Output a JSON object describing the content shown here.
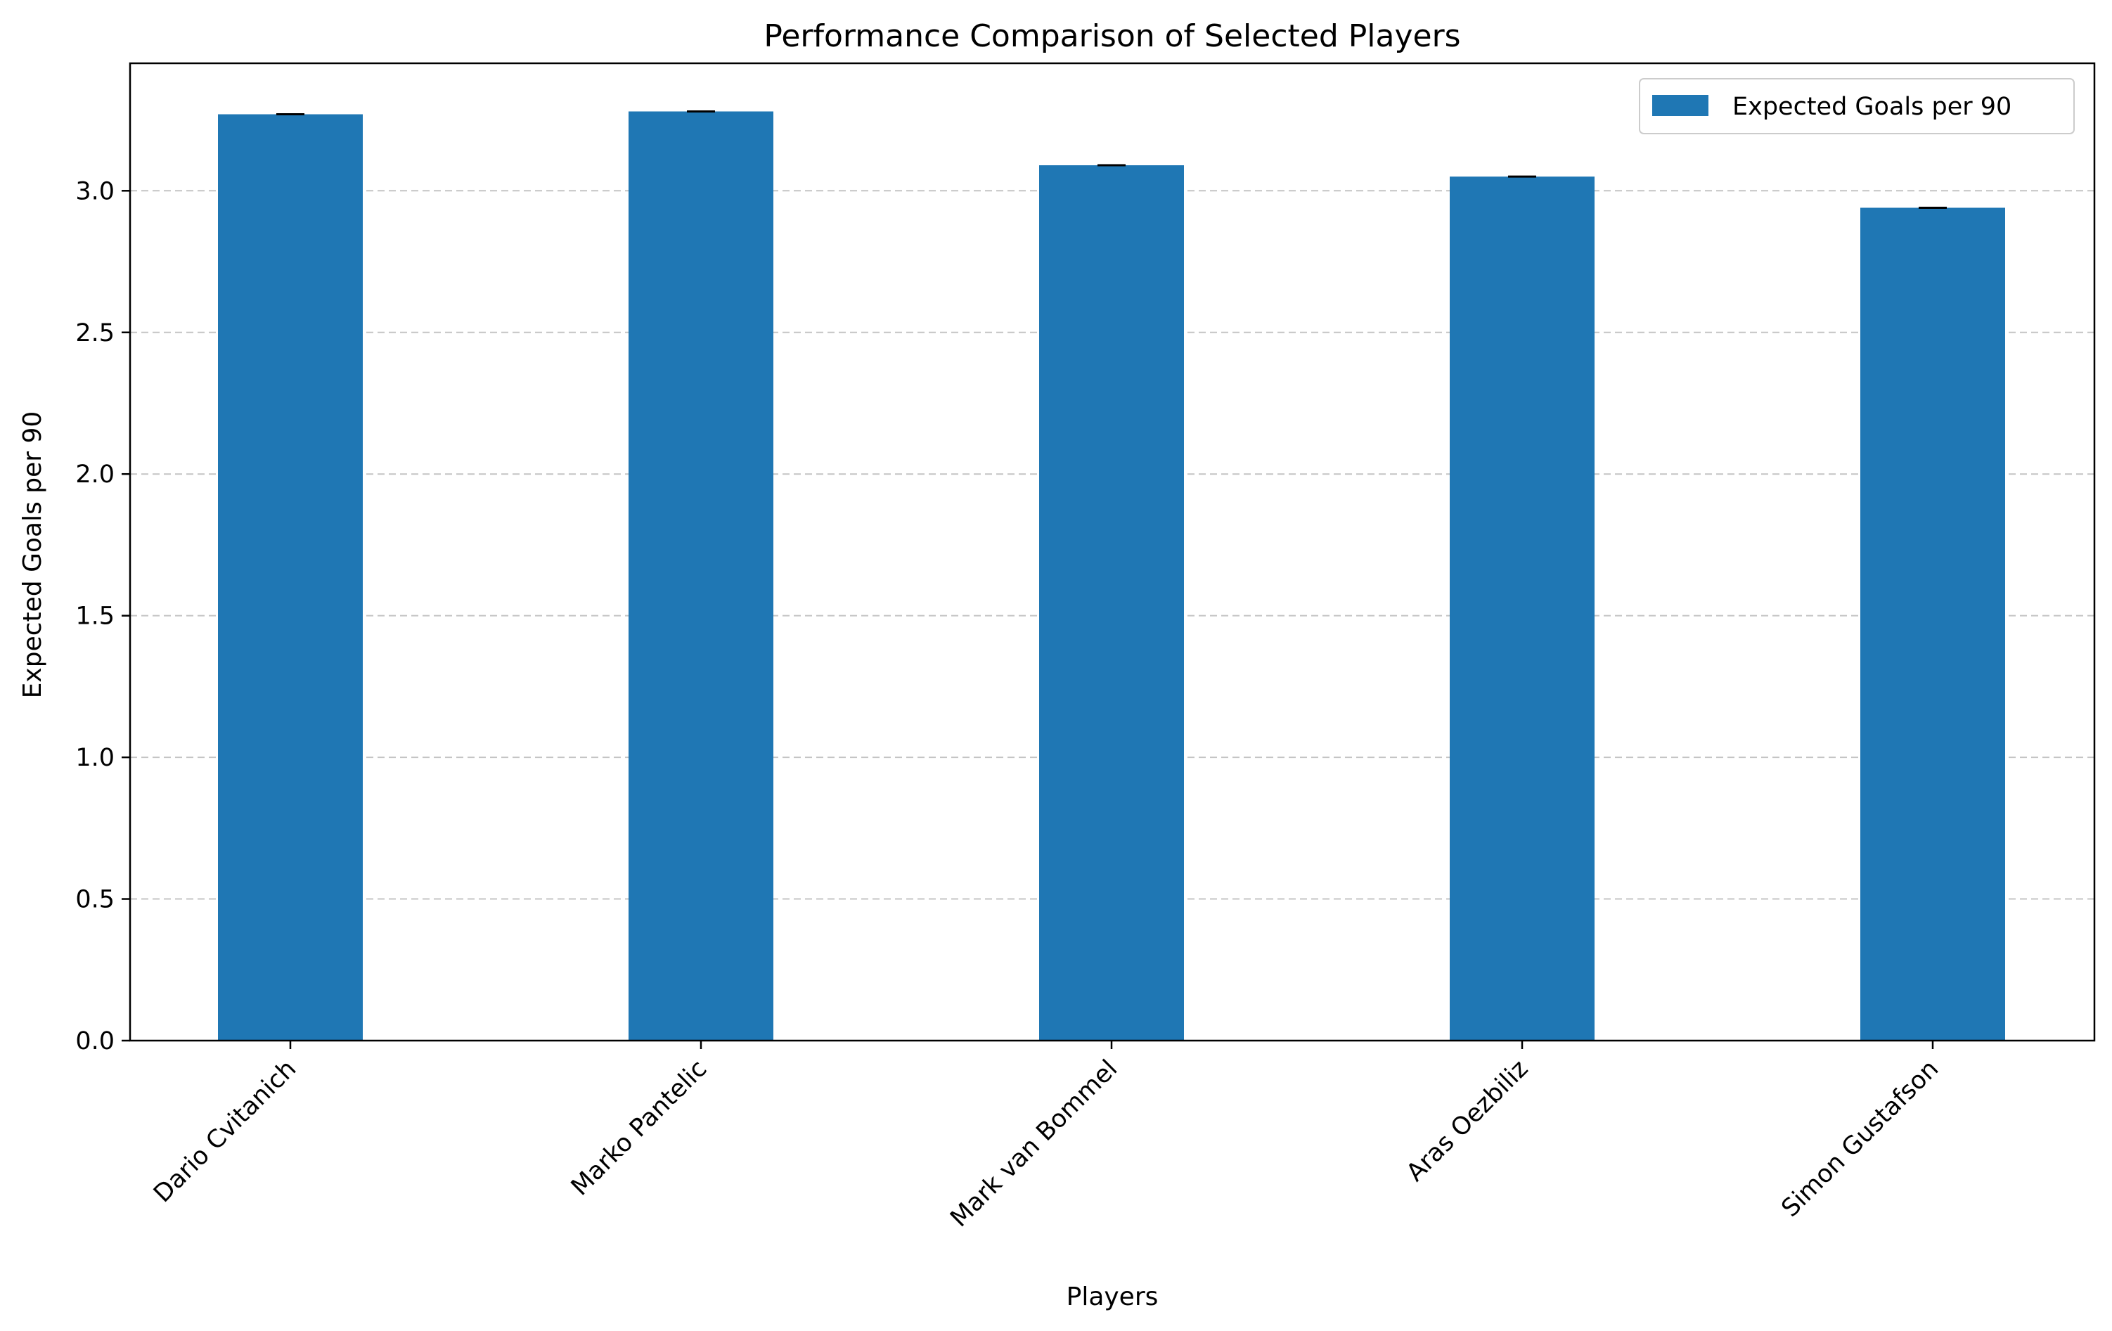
{
  "chart_data": {
    "type": "bar",
    "title": "Performance Comparison of Selected Players",
    "xlabel": "Players",
    "ylabel": "Expected Goals per 90",
    "categories": [
      "Dario Cvitanich",
      "Marko Pantelic",
      "Mark van Bommel",
      "Aras Oezbiliz",
      "Simon Gustafson"
    ],
    "series": [
      {
        "name": "Expected Goals per 90",
        "values": [
          3.27,
          3.28,
          3.09,
          3.05,
          2.94
        ],
        "error": [
          0.002,
          0.002,
          0.002,
          0.002,
          0.002
        ],
        "color": "#1f77b4"
      }
    ],
    "ylim": [
      0,
      3.45
    ],
    "yticks": [
      "0.0",
      "0.5",
      "1.0",
      "1.5",
      "2.0",
      "2.5",
      "3.0"
    ],
    "grid": "y-dashed",
    "legend_position": "top-right"
  }
}
